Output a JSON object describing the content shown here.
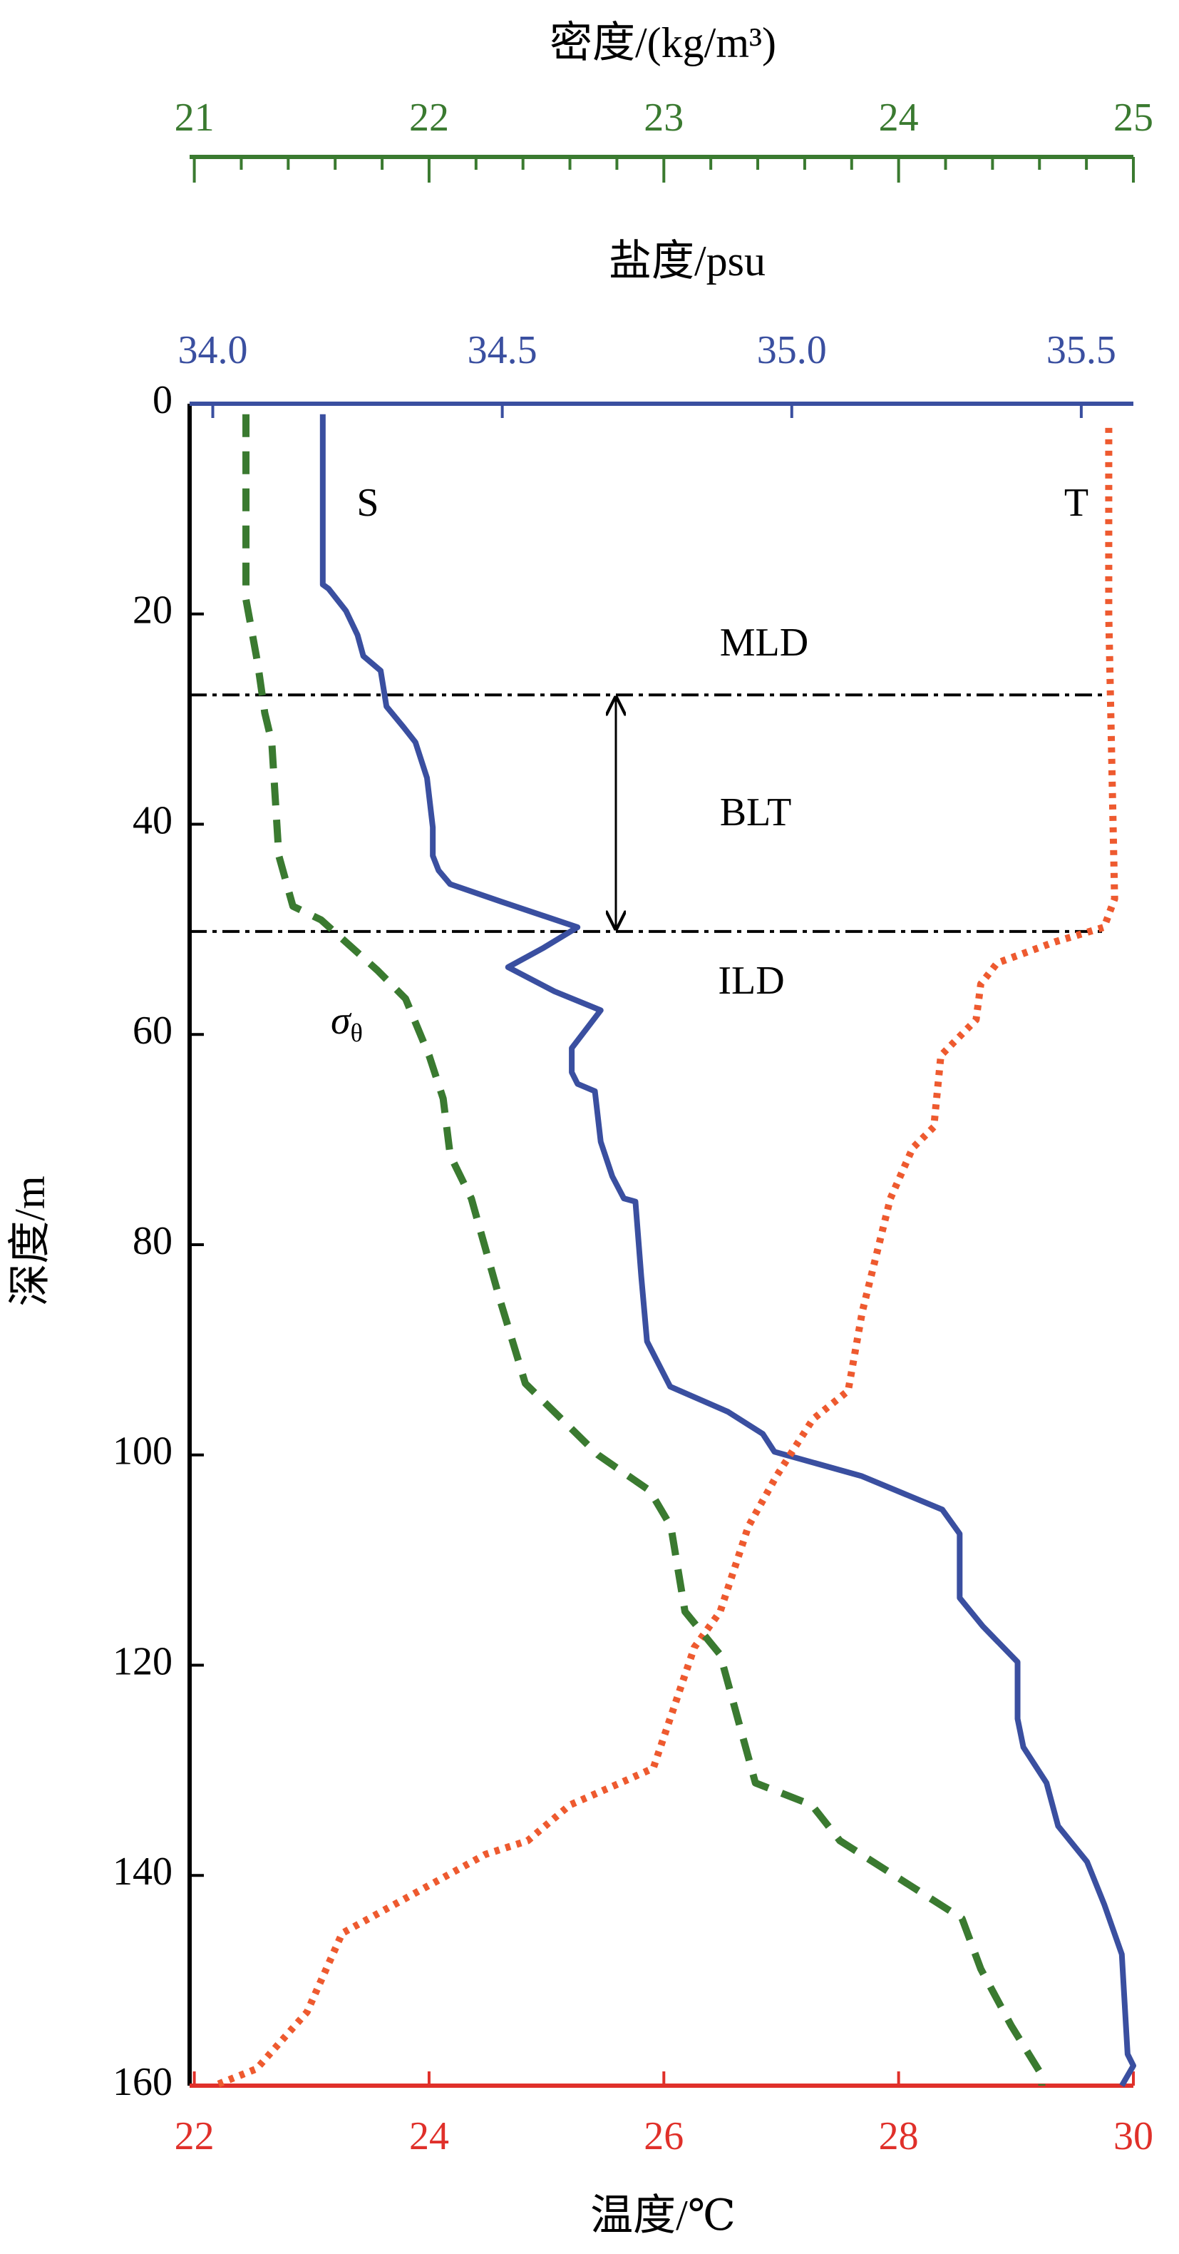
{
  "chart_data": {
    "type": "line",
    "title_density": "密度/(kg/m³)",
    "title_salinity": "盐度/psu",
    "title_temperature": "温度/℃",
    "title_depth": "深度/m",
    "ylim": [
      0,
      160
    ],
    "yticks": [
      0,
      20,
      40,
      60,
      80,
      100,
      120,
      140,
      160
    ],
    "x_temperature": {
      "lim": [
        21.96,
        30
      ],
      "ticks": [
        22,
        24,
        26,
        28,
        30
      ],
      "color": "#e0302a"
    },
    "x_salinity": {
      "lim": [
        33.96,
        35.59
      ],
      "ticks": [
        {
          "value": 34,
          "label": "34.0"
        },
        34.5,
        {
          "value": 35,
          "label": "35.0"
        },
        35.5
      ],
      "color": "#3a4fa0"
    },
    "x_density": {
      "lim": [
        20.98,
        25
      ],
      "ticks": [
        21,
        22,
        23,
        24,
        25
      ],
      "minor_ticks": [
        21.2,
        21.4,
        21.6,
        21.8,
        22.2,
        22.4,
        22.6,
        22.8,
        23.2,
        23.4,
        23.6,
        23.8,
        24.2,
        24.4,
        24.6,
        24.8
      ],
      "color": "#3a7a30"
    },
    "series": [
      {
        "name": "S",
        "axis": "x_salinity",
        "color": "#3a4fa0",
        "style": "solid",
        "depth": [
          1,
          17.2,
          17.6,
          19.7,
          22,
          24,
          25.4,
          28.8,
          30.8,
          32.2,
          35.6,
          40.3,
          43,
          44.4,
          45.7,
          47.4,
          49.8,
          51.8,
          53.6,
          55.9,
          57.7,
          61.3,
          63.6,
          64.7,
          65.4,
          70.2,
          73.5,
          75.6,
          75.9,
          83,
          89.2,
          93.5,
          95.9,
          98,
          99.7,
          102,
          105.2,
          107.5,
          113.6,
          116.3,
          119.7,
          125.1,
          127.8,
          131.2,
          135.3,
          138.7,
          142.8,
          147.5,
          157,
          158.1,
          160
        ],
        "values": [
          34.19,
          34.19,
          34.2,
          34.23,
          34.25,
          34.26,
          34.29,
          34.3,
          34.33,
          34.35,
          34.37,
          34.38,
          34.38,
          34.39,
          34.41,
          34.5,
          34.63,
          34.57,
          34.51,
          34.59,
          34.67,
          34.62,
          34.62,
          34.63,
          34.66,
          34.67,
          34.69,
          34.71,
          34.73,
          34.74,
          34.75,
          34.79,
          34.89,
          34.95,
          34.97,
          35.12,
          35.26,
          35.29,
          35.29,
          35.33,
          35.39,
          35.39,
          35.4,
          35.44,
          35.46,
          35.51,
          35.54,
          35.57,
          35.58,
          35.59,
          35.57
        ]
      },
      {
        "name": "T",
        "axis": "x_temperature",
        "color": "#ee5a2f",
        "style": "dotted",
        "depth": [
          2.3,
          20,
          47.1,
          49.8,
          51.2,
          53.2,
          55.2,
          58.6,
          62,
          68.8,
          70.8,
          75.6,
          86.4,
          93.9,
          96.6,
          102,
          106.8,
          114.9,
          118.3,
          129.8,
          131.2,
          133.3,
          136.7,
          138,
          145.5,
          153,
          158.4,
          160
        ],
        "values": [
          29.79,
          29.79,
          29.84,
          29.75,
          29.33,
          28.84,
          28.7,
          28.66,
          28.36,
          28.3,
          28.12,
          27.93,
          27.69,
          27.57,
          27.27,
          26.96,
          26.72,
          26.48,
          26.26,
          25.91,
          25.63,
          25.2,
          24.84,
          24.48,
          23.26,
          22.96,
          22.53,
          22.17
        ]
      },
      {
        "name": {
          "symbol": "σ",
          "subscript": "θ"
        },
        "axis": "x_density",
        "color": "#3a7a30",
        "style": "dashed",
        "depth": [
          1,
          18.6,
          24.7,
          29.4,
          32.2,
          43,
          47.8,
          49.1,
          53.9,
          56.6,
          62,
          66.1,
          71.5,
          75.6,
          85.1,
          93.2,
          100,
          103.4,
          106.8,
          114.9,
          119,
          131.2,
          133.3,
          136.7,
          144.1,
          148.9,
          154.3,
          159,
          160
        ],
        "values": [
          21.22,
          21.22,
          21.27,
          21.3,
          21.33,
          21.36,
          21.42,
          21.54,
          21.78,
          21.9,
          22,
          22.06,
          22.09,
          22.18,
          22.3,
          22.41,
          22.72,
          22.94,
          23.03,
          23.09,
          23.24,
          23.39,
          23.63,
          23.75,
          24.27,
          24.35,
          24.48,
          24.61,
          24.61
        ]
      }
    ],
    "hlines": [
      27.7,
      50.2
    ],
    "annotations": [
      "MLD",
      "BLT",
      "ILD"
    ]
  }
}
